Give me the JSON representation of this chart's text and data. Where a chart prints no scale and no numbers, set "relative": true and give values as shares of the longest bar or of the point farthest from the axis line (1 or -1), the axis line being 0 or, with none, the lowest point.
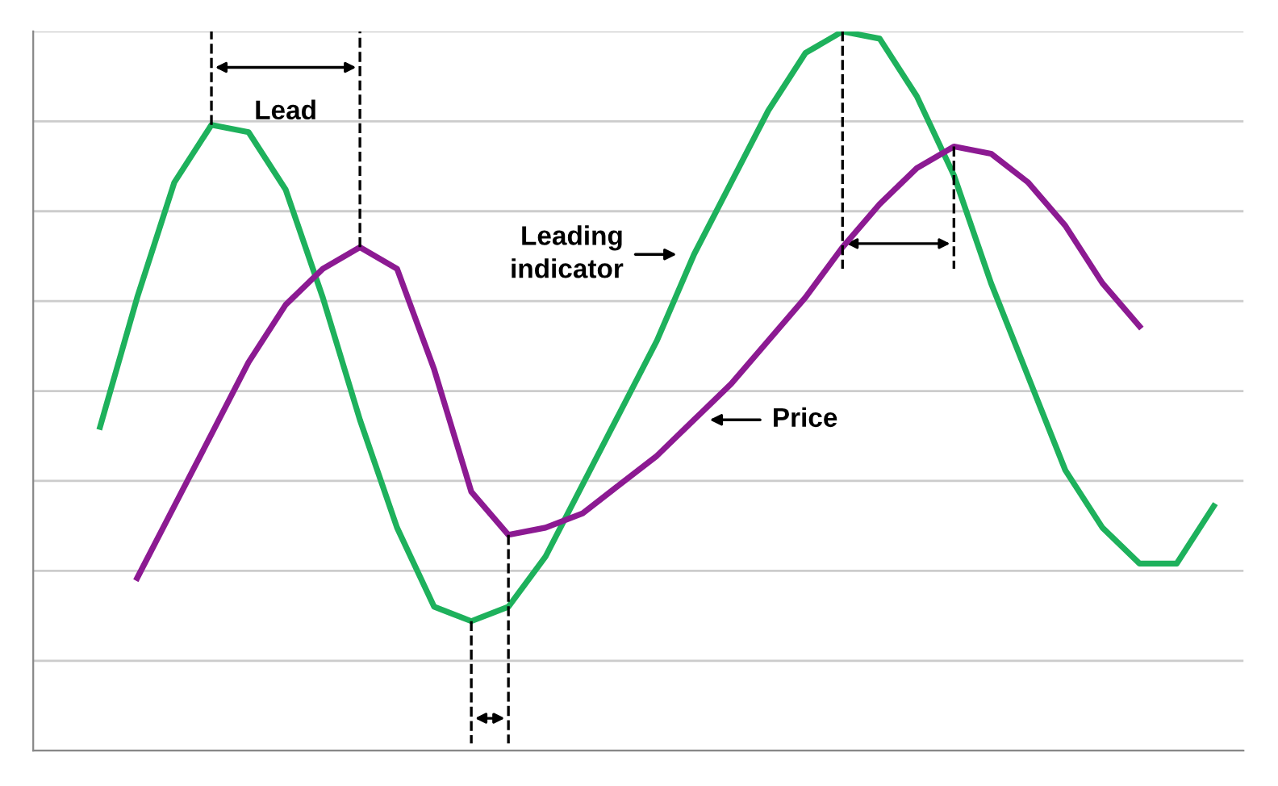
{
  "chart_data": {
    "type": "line",
    "relative": true,
    "grid": "y",
    "legend": false,
    "marker": "none",
    "line_style": "solid",
    "categories": [
      null,
      null,
      null,
      null,
      null,
      null,
      null,
      null,
      null,
      null,
      null,
      null,
      null,
      null,
      null,
      null,
      null,
      null,
      null,
      null,
      null,
      null,
      null,
      null,
      null,
      null,
      null,
      null,
      null,
      null,
      null
    ],
    "series": [
      {
        "name": "Leading indicator",
        "color": "#1eb15c",
        "values": [
          0.45,
          0.63,
          0.79,
          0.87,
          0.86,
          0.78,
          0.63,
          0.46,
          0.31,
          0.2,
          0.18,
          0.2,
          0.27,
          0.37,
          0.47,
          0.57,
          0.69,
          0.79,
          0.89,
          0.97,
          1.0,
          0.99,
          0.91,
          0.8,
          0.65,
          0.52,
          0.39,
          0.31,
          0.26,
          0.26,
          0.34
        ]
      },
      {
        "name": "Price",
        "color": "#8c1a92",
        "values": [
          null,
          0.24,
          0.34,
          0.44,
          0.54,
          0.62,
          0.67,
          0.7,
          0.67,
          0.53,
          0.36,
          0.3,
          0.31,
          0.33,
          0.37,
          0.41,
          0.46,
          0.51,
          0.57,
          0.63,
          0.7,
          0.76,
          0.81,
          0.84,
          0.83,
          0.79,
          0.73,
          0.65,
          0.59,
          null,
          null
        ]
      }
    ],
    "annotations": [
      "Lead"
    ]
  }
}
